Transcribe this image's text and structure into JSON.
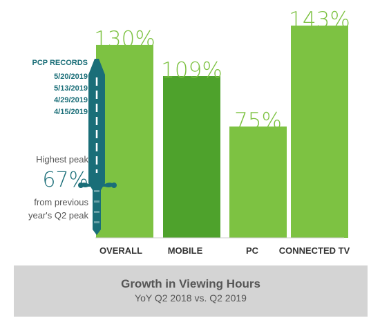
{
  "chart_data": {
    "type": "bar",
    "title": "Growth in Viewing Hours",
    "subtitle": "YoY Q2 2018 vs. Q2 2019",
    "categories": [
      "OVERALL",
      "MOBILE",
      "PC",
      "CONNECTED TV"
    ],
    "values": [
      130,
      109,
      75,
      143
    ],
    "value_labels": [
      "130%",
      "109%",
      "75%",
      "143%"
    ],
    "ylim": [
      0,
      150
    ],
    "grid": false,
    "colors": [
      "#7dc242",
      "#4ea22c",
      "#7dc242",
      "#7dc242"
    ],
    "label_color": "#7dc242"
  },
  "pcp_records": {
    "title": "PCP RECORDS",
    "dates": [
      "5/20/2019",
      "5/13/2019",
      "4/29/2019",
      "4/15/2019"
    ]
  },
  "peak_note": {
    "line1": "Highest peak",
    "value": "67%",
    "line2": "from previous",
    "line3": "year's Q2 peak"
  },
  "sword_icon": {
    "icon": "sword-icon",
    "color": "#1a6e78"
  },
  "footer": {
    "title": "Growth in Viewing Hours",
    "subtitle": "YoY Q2 2018 vs. Q2 2019"
  }
}
